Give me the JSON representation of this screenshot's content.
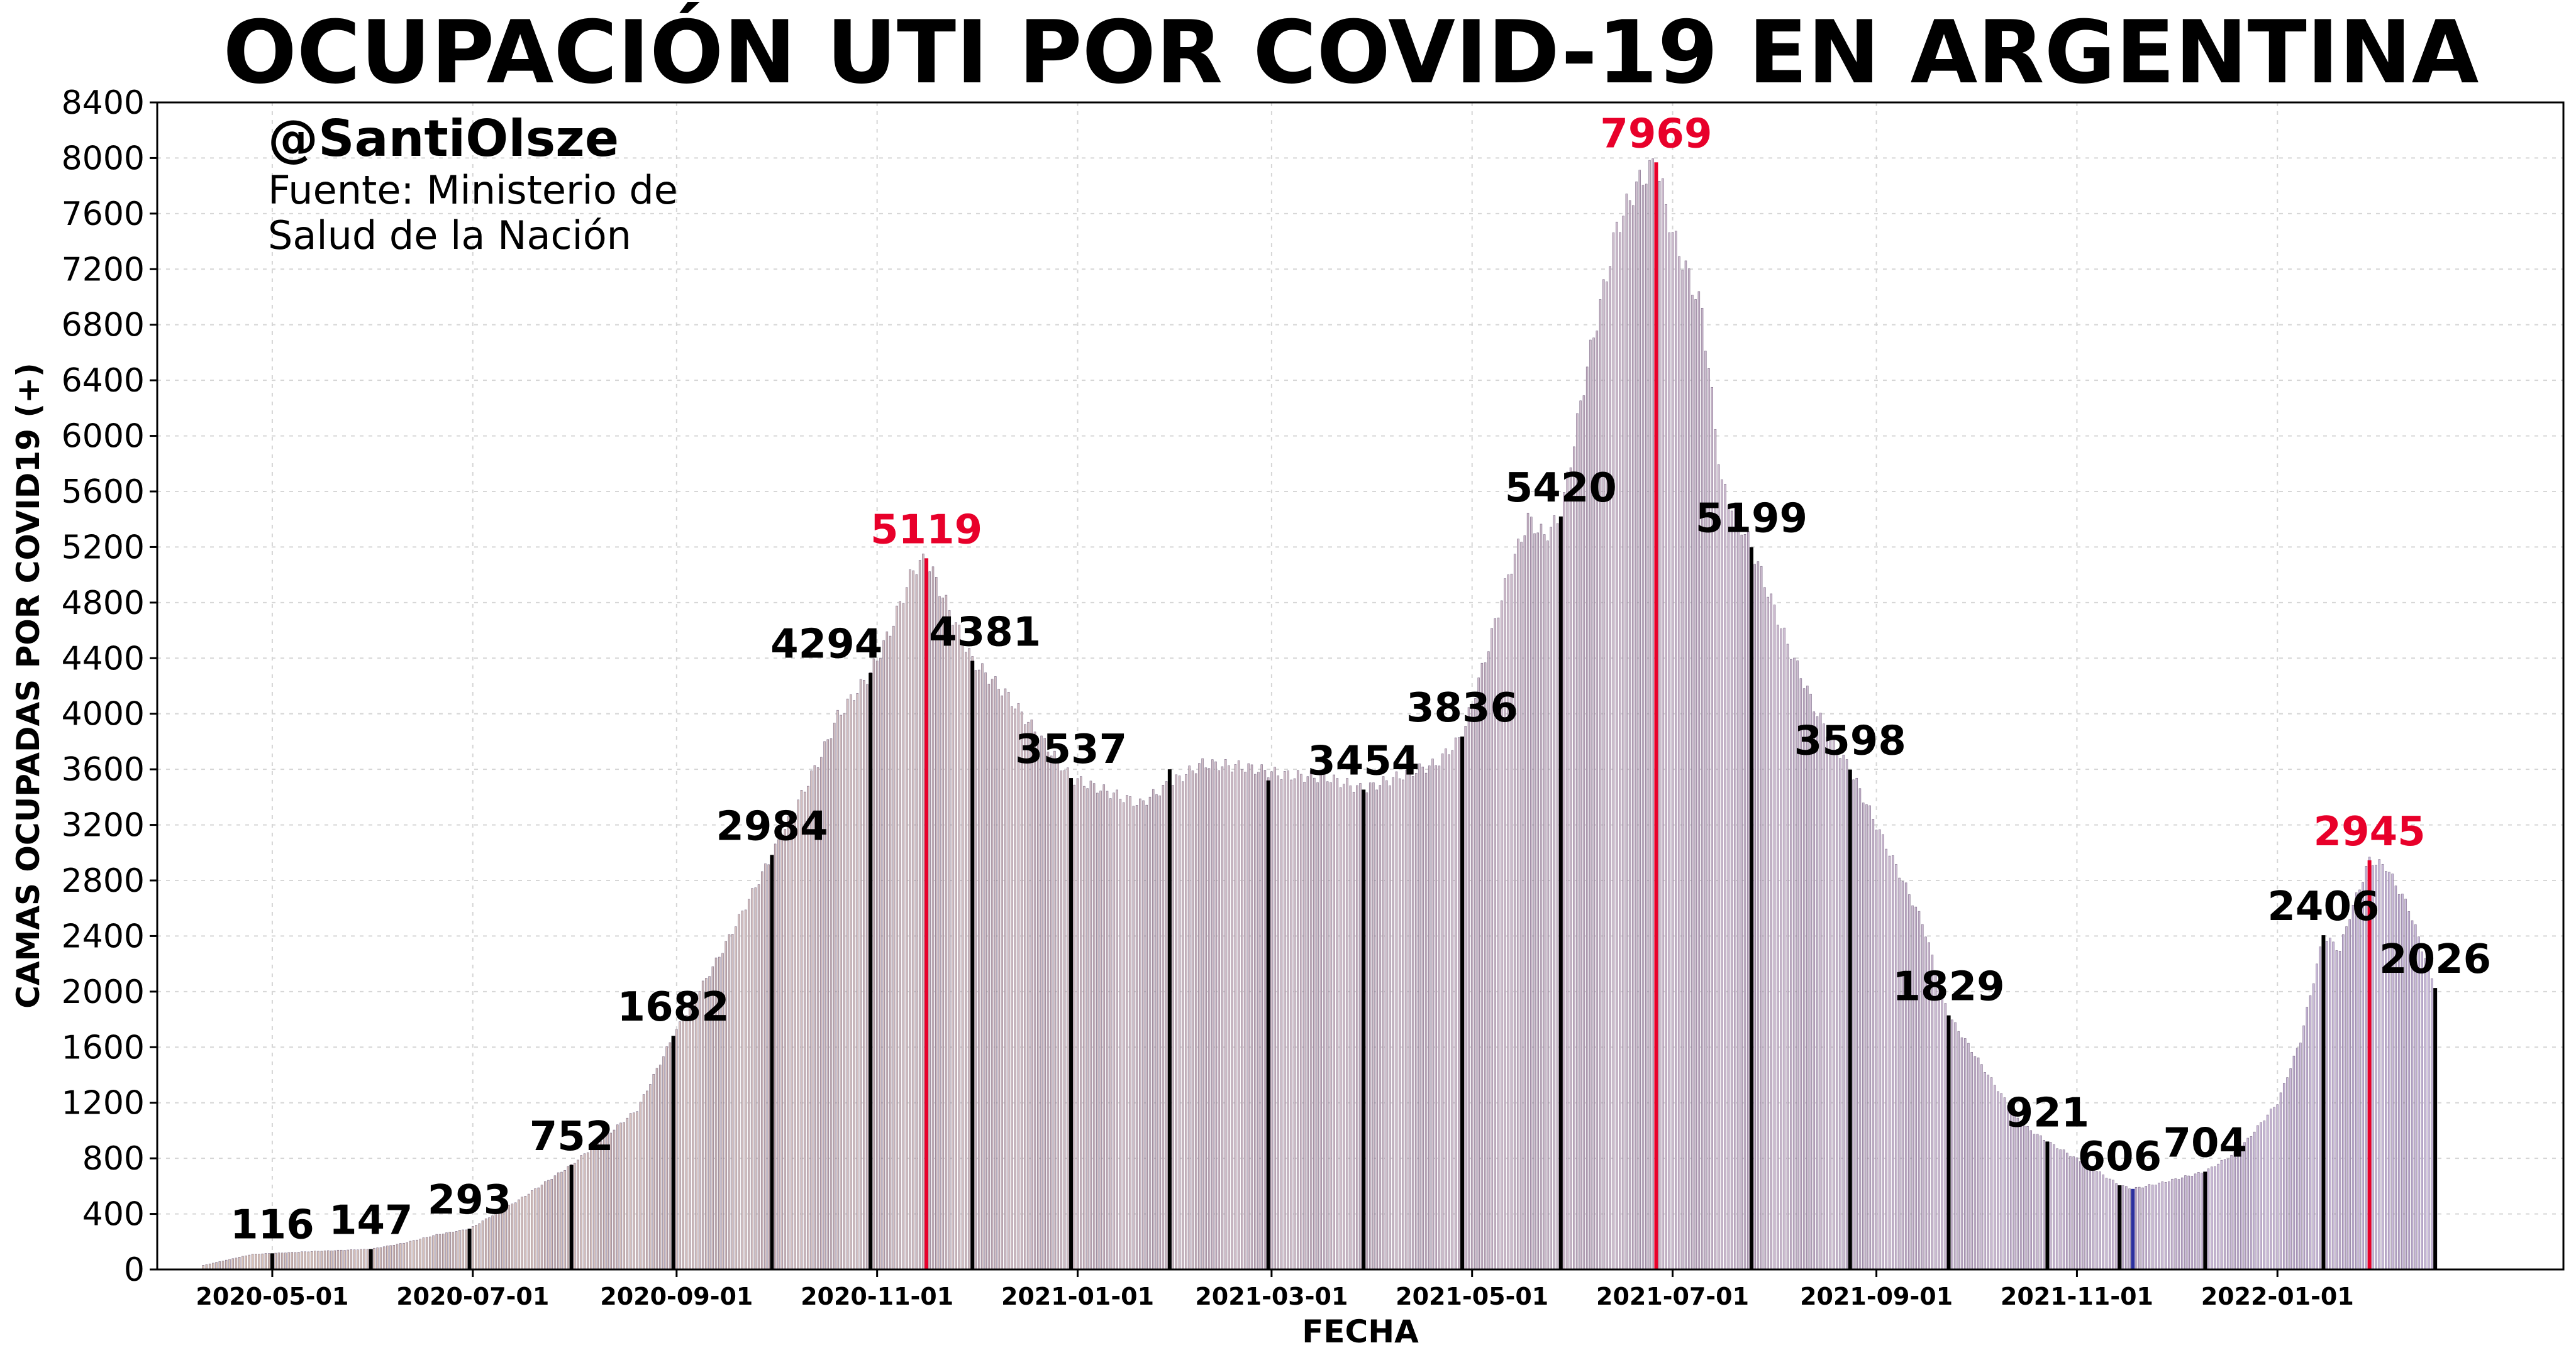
{
  "chart_data": {
    "type": "bar",
    "title": "OCUPACIÓN UTI POR COVID-19 EN ARGENTINA",
    "xlabel": "FECHA",
    "ylabel": "CAMAS OCUPADAS POR COVID19 (+)",
    "ylim": [
      0,
      8400
    ],
    "yticks": [
      0,
      400,
      800,
      1200,
      1600,
      2000,
      2400,
      2800,
      3200,
      3600,
      4000,
      4400,
      4800,
      5200,
      5600,
      6000,
      6400,
      6800,
      7200,
      7600,
      8000,
      8400
    ],
    "xlim": [
      "2020-03-27",
      "2022-03-29"
    ],
    "xticks": [
      "2020-05-01",
      "2020-07-01",
      "2020-09-01",
      "2020-11-01",
      "2021-01-01",
      "2021-03-01",
      "2021-05-01",
      "2021-07-01",
      "2021-09-01",
      "2021-11-01",
      "2022-01-01"
    ],
    "grid": true,
    "colors": {
      "gradient_start": "#d9c3b5",
      "gradient_end": "#c9b9dc",
      "bar_edge": "#7b6a86",
      "highlight": "#000000",
      "peak": "#e8002a",
      "current": "#2b2f9e"
    },
    "series": [
      {
        "values": [
          [
            "2020-04-10",
            30
          ],
          [
            "2020-04-25",
            110
          ],
          [
            "2020-05-01",
            116
          ],
          [
            "2020-05-15",
            132
          ],
          [
            "2020-05-31",
            147
          ],
          [
            "2020-06-10",
            190
          ],
          [
            "2020-06-20",
            250
          ],
          [
            "2020-06-30",
            293
          ],
          [
            "2020-07-15",
            500
          ],
          [
            "2020-07-31",
            752
          ],
          [
            "2020-08-20",
            1150
          ],
          [
            "2020-08-31",
            1682
          ],
          [
            "2020-09-15",
            2300
          ],
          [
            "2020-09-30",
            2984
          ],
          [
            "2020-10-15",
            3700
          ],
          [
            "2020-10-20",
            3980
          ],
          [
            "2020-10-30",
            4294
          ],
          [
            "2020-11-05",
            4600
          ],
          [
            "2020-11-12",
            5040
          ],
          [
            "2020-11-16",
            5119
          ],
          [
            "2020-11-20",
            4900
          ],
          [
            "2020-11-30",
            4381
          ],
          [
            "2020-12-10",
            4150
          ],
          [
            "2020-12-20",
            3850
          ],
          [
            "2020-12-30",
            3537
          ],
          [
            "2021-01-10",
            3440
          ],
          [
            "2021-01-20",
            3350
          ],
          [
            "2021-01-28",
            3480
          ],
          [
            "2021-02-08",
            3640
          ],
          [
            "2021-02-20",
            3620
          ],
          [
            "2021-03-05",
            3560
          ],
          [
            "2021-03-18",
            3540
          ],
          [
            "2021-03-29",
            3454
          ],
          [
            "2021-04-10",
            3560
          ],
          [
            "2021-04-20",
            3640
          ],
          [
            "2021-04-28",
            3836
          ],
          [
            "2021-05-05",
            4400
          ],
          [
            "2021-05-12",
            5000
          ],
          [
            "2021-05-18",
            5400
          ],
          [
            "2021-05-23",
            5280
          ],
          [
            "2021-05-28",
            5420
          ],
          [
            "2021-06-05",
            6500
          ],
          [
            "2021-06-14",
            7500
          ],
          [
            "2021-06-20",
            7800
          ],
          [
            "2021-06-26",
            7969
          ],
          [
            "2021-07-01",
            7450
          ],
          [
            "2021-07-10",
            6900
          ],
          [
            "2021-07-16",
            5650
          ],
          [
            "2021-07-25",
            5199
          ],
          [
            "2021-08-05",
            4500
          ],
          [
            "2021-08-14",
            4000
          ],
          [
            "2021-08-24",
            3598
          ],
          [
            "2021-09-05",
            3000
          ],
          [
            "2021-09-15",
            2500
          ],
          [
            "2021-09-23",
            1829
          ],
          [
            "2021-10-05",
            1400
          ],
          [
            "2021-10-15",
            1050
          ],
          [
            "2021-10-23",
            921
          ],
          [
            "2021-11-05",
            740
          ],
          [
            "2021-11-14",
            606
          ],
          [
            "2021-11-18",
            580
          ],
          [
            "2021-11-26",
            620
          ],
          [
            "2021-12-10",
            704
          ],
          [
            "2021-12-20",
            850
          ],
          [
            "2022-01-01",
            1200
          ],
          [
            "2022-01-08",
            1650
          ],
          [
            "2022-01-15",
            2406
          ],
          [
            "2022-01-20",
            2300
          ],
          [
            "2022-01-23",
            2550
          ],
          [
            "2022-01-29",
            2945
          ],
          [
            "2022-02-03",
            2900
          ],
          [
            "2022-02-10",
            2600
          ],
          [
            "2022-02-18",
            2026
          ]
        ]
      }
    ],
    "highlighted_bars": [
      {
        "date": "2020-05-01",
        "value": 116
      },
      {
        "date": "2020-05-31",
        "value": 147
      },
      {
        "date": "2020-06-30",
        "value": 293
      },
      {
        "date": "2020-07-31",
        "value": 752
      },
      {
        "date": "2020-08-31",
        "value": 1682
      },
      {
        "date": "2020-09-30",
        "value": 2984
      },
      {
        "date": "2020-10-30",
        "value": 4294
      },
      {
        "date": "2020-11-30",
        "value": 4381
      },
      {
        "date": "2020-12-30",
        "value": 3537
      },
      {
        "date": "2021-01-29",
        "value": 3600
      },
      {
        "date": "2021-02-28",
        "value": 3520
      },
      {
        "date": "2021-03-29",
        "value": 3454
      },
      {
        "date": "2021-04-28",
        "value": 3836
      },
      {
        "date": "2021-05-28",
        "value": 5420
      },
      {
        "date": "2021-07-25",
        "value": 5199
      },
      {
        "date": "2021-08-24",
        "value": 3598
      },
      {
        "date": "2021-09-23",
        "value": 1829
      },
      {
        "date": "2021-10-23",
        "value": 921
      },
      {
        "date": "2021-11-14",
        "value": 606
      },
      {
        "date": "2021-12-10",
        "value": 704
      },
      {
        "date": "2022-01-15",
        "value": 2406
      },
      {
        "date": "2022-02-18",
        "value": 2026
      }
    ],
    "peak_bars": [
      {
        "date": "2020-11-16",
        "value": 5119
      },
      {
        "date": "2021-06-26",
        "value": 7969
      },
      {
        "date": "2022-01-29",
        "value": 2945
      }
    ],
    "current_bar": {
      "date": "2021-11-18",
      "value": 580
    },
    "data_labels": [
      {
        "text": "116",
        "date": "2020-05-01",
        "value": 116,
        "color": "black"
      },
      {
        "text": "147",
        "date": "2020-05-31",
        "value": 147,
        "color": "black"
      },
      {
        "text": "293",
        "date": "2020-06-30",
        "value": 293,
        "color": "black"
      },
      {
        "text": "752",
        "date": "2020-07-31",
        "value": 752,
        "color": "black"
      },
      {
        "text": "1682",
        "date": "2020-08-31",
        "value": 1682,
        "color": "black"
      },
      {
        "text": "2984",
        "date": "2020-09-30",
        "value": 2984,
        "color": "black"
      },
      {
        "text": "4294",
        "date": "2020-10-30",
        "value": 4294,
        "color": "black"
      },
      {
        "text": "5119",
        "date": "2020-11-16",
        "value": 5119,
        "color": "red"
      },
      {
        "text": "4381",
        "date": "2020-11-30",
        "value": 4381,
        "color": "black"
      },
      {
        "text": "3537",
        "date": "2020-12-30",
        "value": 3537,
        "color": "black"
      },
      {
        "text": "3454",
        "date": "2021-03-29",
        "value": 3454,
        "color": "black"
      },
      {
        "text": "3836",
        "date": "2021-04-28",
        "value": 3836,
        "color": "black"
      },
      {
        "text": "5420",
        "date": "2021-05-28",
        "value": 5420,
        "color": "black"
      },
      {
        "text": "7969",
        "date": "2021-06-26",
        "value": 7969,
        "color": "red"
      },
      {
        "text": "5199",
        "date": "2021-07-25",
        "value": 5199,
        "color": "black"
      },
      {
        "text": "3598",
        "date": "2021-08-24",
        "value": 3598,
        "color": "black"
      },
      {
        "text": "1829",
        "date": "2021-09-23",
        "value": 1829,
        "color": "black"
      },
      {
        "text": "921",
        "date": "2021-10-23",
        "value": 921,
        "color": "black"
      },
      {
        "text": "606",
        "date": "2021-11-14",
        "value": 606,
        "color": "black"
      },
      {
        "text": "704",
        "date": "2021-12-10",
        "value": 704,
        "color": "black"
      },
      {
        "text": "2406",
        "date": "2022-01-15",
        "value": 2406,
        "color": "black"
      },
      {
        "text": "2945",
        "date": "2022-01-29",
        "value": 2945,
        "color": "red"
      },
      {
        "text": "2026",
        "date": "2022-02-18",
        "value": 2026,
        "color": "black"
      }
    ]
  },
  "watermark": {
    "handle": "@SantiOlsze",
    "source": "Fuente: Ministerio de Salud de la Nación"
  }
}
